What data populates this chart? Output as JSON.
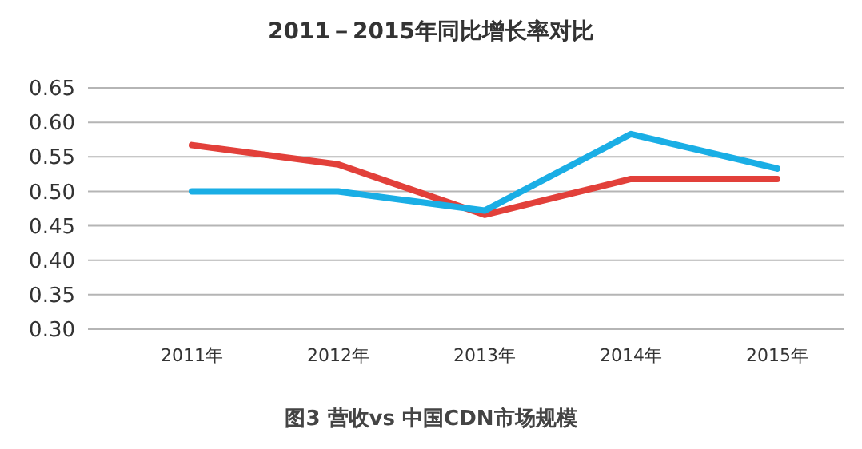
{
  "chart_data": {
    "type": "line",
    "title": "2011－2015年同比增长率对比",
    "categories": [
      "2011年",
      "2012年",
      "2013年",
      "2014年",
      "2015年"
    ],
    "series": [
      {
        "color": "#e2403a",
        "values": [
          0.567,
          0.539,
          0.466,
          0.518,
          0.518
        ]
      },
      {
        "color": "#1aaee5",
        "values": [
          0.5,
          0.5,
          0.472,
          0.583,
          0.533
        ]
      }
    ],
    "ylim": [
      0.3,
      0.65
    ],
    "yticks": [
      {
        "value": 0.3,
        "label": "0.30"
      },
      {
        "value": 0.35,
        "label": "0.35"
      },
      {
        "value": 0.4,
        "label": "0.40"
      },
      {
        "value": 0.45,
        "label": "0.45"
      },
      {
        "value": 0.5,
        "label": "0.50"
      },
      {
        "value": 0.55,
        "label": "0.55"
      },
      {
        "value": 0.6,
        "label": "0.60"
      },
      {
        "value": 0.65,
        "label": "0.65"
      }
    ],
    "grid": "y",
    "marker": "none",
    "line_style": "solid",
    "annotations": [
      "图3 营收vs 中国CDN市场规模"
    ]
  }
}
